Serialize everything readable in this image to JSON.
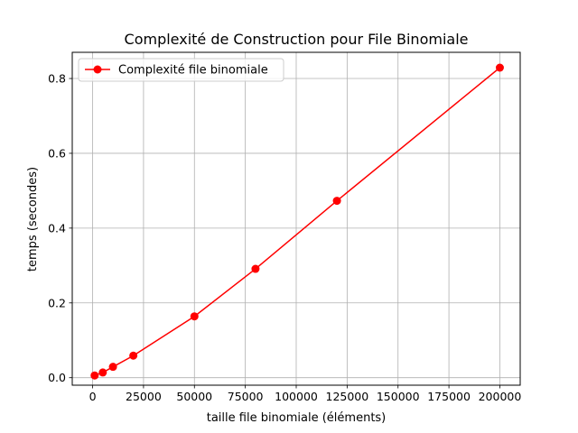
{
  "chart_data": {
    "type": "line",
    "title": "Complexité de Construction pour File Binomiale",
    "xlabel": "taille file binomiale (éléments)",
    "ylabel": "temps (secondes)",
    "xlim": [
      -10000,
      210000
    ],
    "ylim": [
      -0.02,
      0.87
    ],
    "xticks": [
      0,
      25000,
      50000,
      75000,
      100000,
      125000,
      150000,
      175000,
      200000
    ],
    "yticks": [
      0.0,
      0.2,
      0.4,
      0.6,
      0.8
    ],
    "xtick_labels": [
      "0",
      "25000",
      "50000",
      "75000",
      "100000",
      "125000",
      "150000",
      "175000",
      "200000"
    ],
    "ytick_labels": [
      "0.0",
      "0.2",
      "0.4",
      "0.6",
      "0.8"
    ],
    "grid": true,
    "legend_position": "top-left",
    "series": [
      {
        "name": "Complexité file binomiale",
        "color": "#ff0000",
        "marker": "circle",
        "x": [
          1000,
          5000,
          10000,
          20000,
          50000,
          80000,
          120000,
          200000
        ],
        "y": [
          0.006,
          0.014,
          0.029,
          0.059,
          0.164,
          0.291,
          0.473,
          0.829
        ]
      }
    ]
  }
}
